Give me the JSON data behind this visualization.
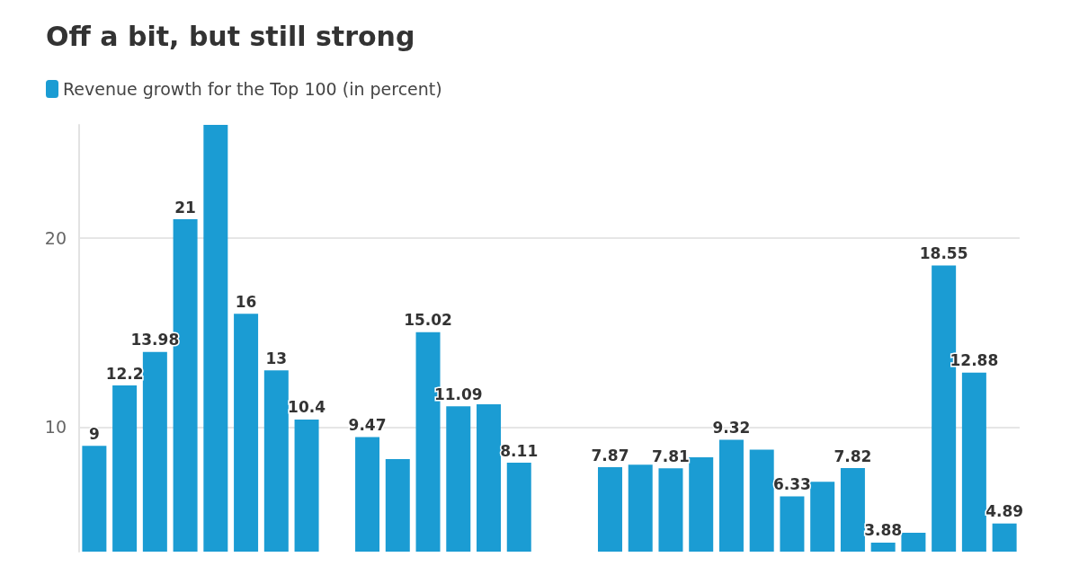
{
  "chart_data": {
    "type": "bar",
    "title": "Off a bit, but still strong",
    "categories": [
      null,
      null,
      null,
      null,
      null,
      null,
      null,
      null,
      null,
      null,
      null,
      null,
      null,
      null,
      null,
      null,
      null,
      null,
      null,
      null,
      null,
      null,
      null,
      null,
      null,
      null,
      null,
      null,
      null,
      null,
      null
    ],
    "series": [
      {
        "name": "Revenue growth for the Top 100 (in percent)",
        "color": "#1b9cd3",
        "values": [
          9,
          12.2,
          13.98,
          21,
          26,
          16,
          13,
          10.4,
          null,
          9.47,
          8.3,
          15.02,
          11.09,
          11.2,
          8.11,
          null,
          null,
          7.87,
          8,
          7.81,
          8.4,
          9.32,
          8.8,
          6.33,
          7.1,
          7.82,
          3.88,
          4.4,
          18.55,
          12.88,
          4.89
        ],
        "value_labels": [
          "9",
          "12.2",
          "13.98",
          "21",
          null,
          "16",
          "13",
          "10.4",
          null,
          "9.47",
          null,
          "15.02",
          "11.09",
          null,
          "8.11",
          null,
          null,
          "7.87",
          null,
          "7.81",
          null,
          "9.32",
          null,
          "6.33",
          null,
          "7.82",
          "3.88",
          null,
          "18.55",
          "12.88",
          "4.89"
        ]
      }
    ],
    "ylim": [
      3.4,
      26
    ],
    "yticks": [
      10,
      20
    ],
    "grid": "y",
    "legend": "top left"
  }
}
